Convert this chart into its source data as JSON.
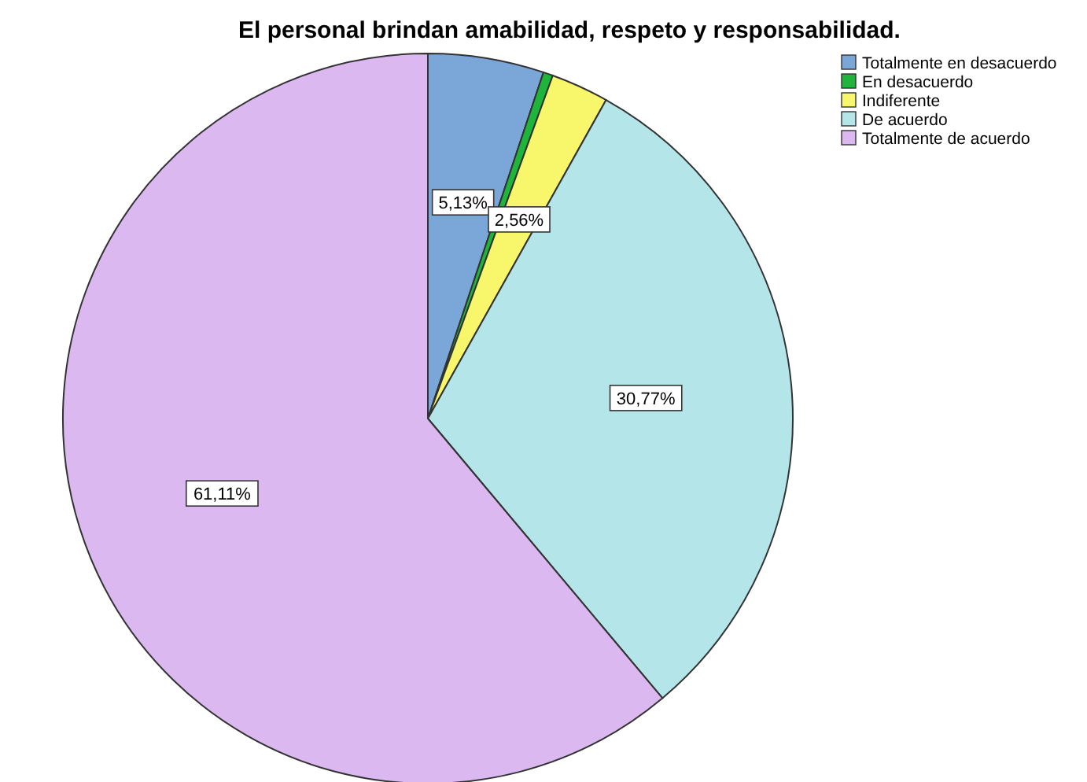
{
  "chart_data": {
    "type": "pie",
    "title": "El personal brindan amabilidad, respeto y responsabilidad.",
    "categories": [
      "Totalmente en desacuerdo",
      "En desacuerdo",
      "Indiferente",
      "De acuerdo",
      "Totalmente de acuerdo"
    ],
    "values": [
      5.13,
      0.43,
      2.56,
      30.77,
      61.11
    ],
    "value_labels": [
      "5,13%",
      null,
      "2,56%",
      "30,77%",
      "61,11%"
    ],
    "colors": [
      "#7ba7d8",
      "#1eb53a",
      "#f8f66a",
      "#b4e5e8",
      "#dcb8f0"
    ],
    "legend": "top right"
  }
}
